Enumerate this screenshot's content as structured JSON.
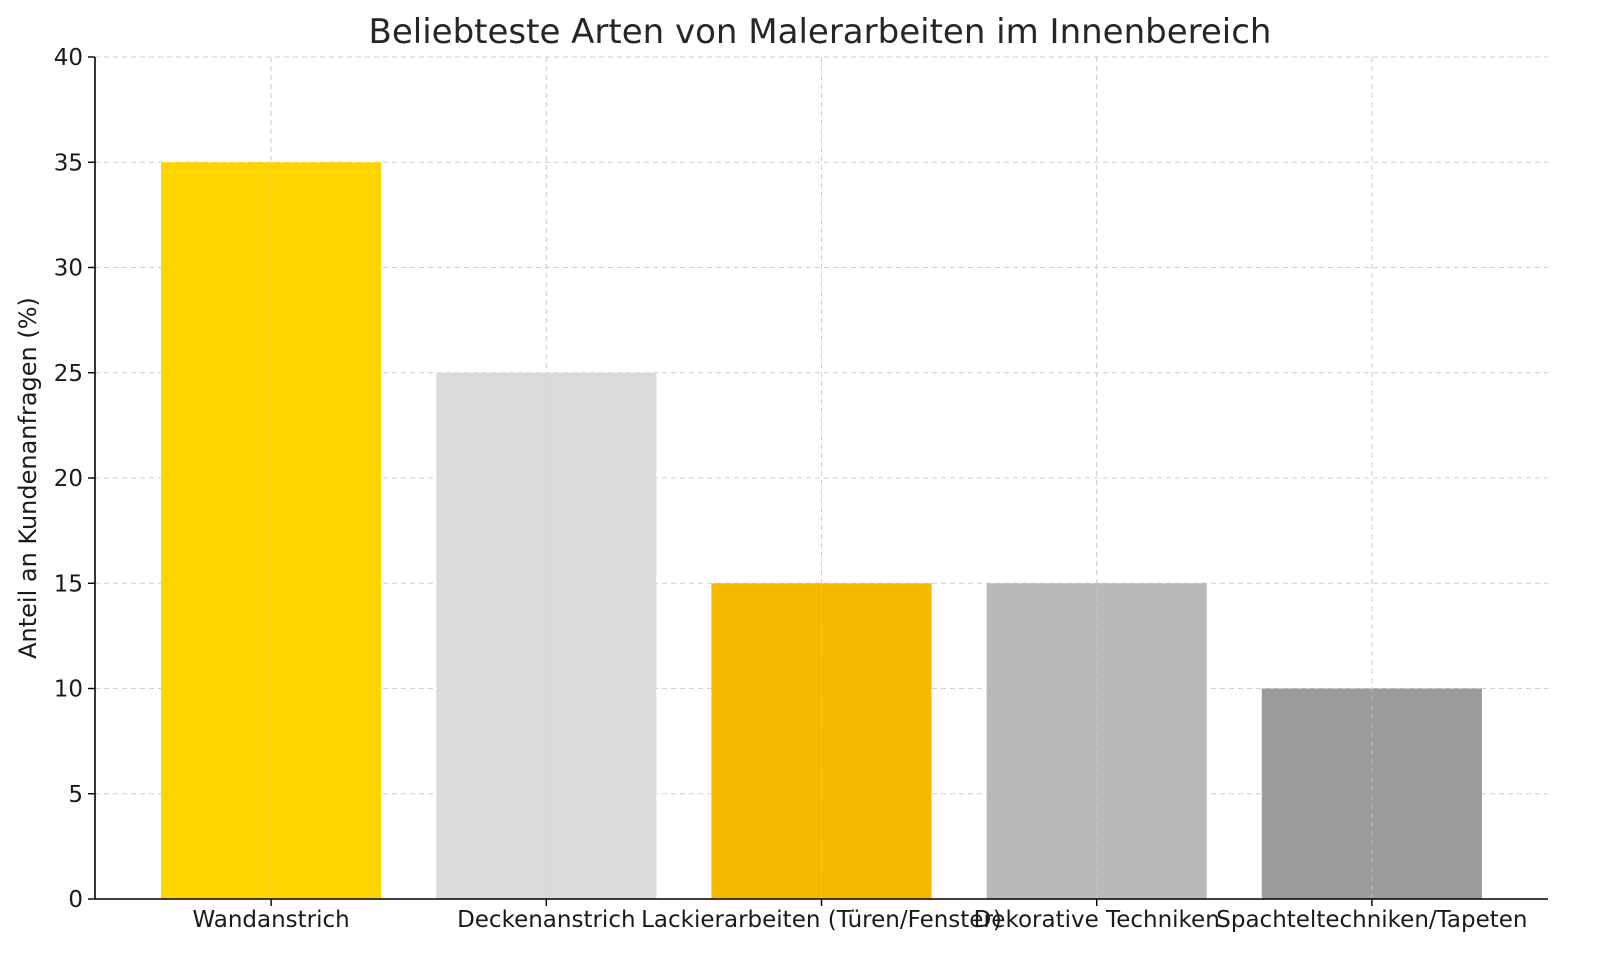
{
  "chart_data": {
    "type": "bar",
    "title": "Beliebteste Arten von Malerarbeiten im Innenbereich",
    "xlabel": "",
    "ylabel": "Anteil an Kundenanfragen (%)",
    "categories": [
      "Wandanstrich",
      "Deckenanstrich",
      "Lackierarbeiten (Türen/Fenster)",
      "Dekorative Techniken",
      "Spachteltechniken/Tapeten"
    ],
    "values": [
      35,
      25,
      15,
      15,
      10
    ],
    "colors": [
      "#FFD500",
      "#DCDADD",
      "#F7B800",
      "#BAB8BA",
      "#9B9A9C"
    ],
    "ylim": [
      0,
      40
    ],
    "yticks": [
      0,
      5,
      10,
      15,
      20,
      25,
      30,
      35,
      40
    ],
    "grid": true,
    "grid_color": "#CFCFCF",
    "axis_color": "#000000"
  }
}
